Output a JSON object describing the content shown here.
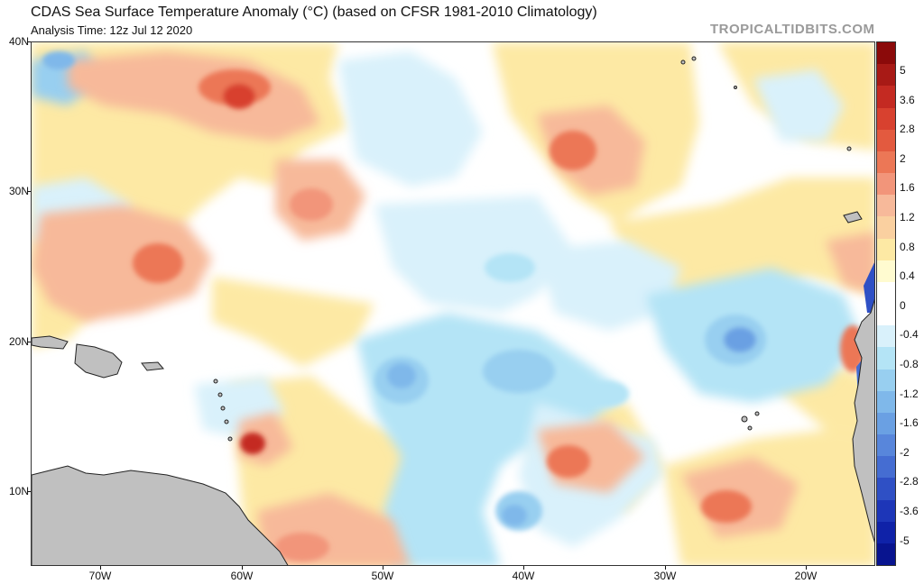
{
  "header": {
    "title": "CDAS Sea Surface Temperature Anomaly (°C) (based on CFSR 1981-2010 Climatology)",
    "subtitle": "Analysis Time: 12z Jul 12 2020",
    "watermark": "TROPICALTIDBITS.COM"
  },
  "map": {
    "lat_labels": [
      "40N",
      "30N",
      "20N",
      "10N"
    ],
    "lon_labels": [
      "70W",
      "60W",
      "50W",
      "40W",
      "30W",
      "20W"
    ],
    "land_color": "#c0c0c0",
    "coastline_color": "#222222"
  },
  "colorbar": {
    "labels": [
      "5",
      "3.6",
      "2.8",
      "2",
      "1.6",
      "1.2",
      "0.8",
      "0.4",
      "0",
      "-0.4",
      "-0.8",
      "-1.2",
      "-1.6",
      "-2",
      "-2.8",
      "-3.6",
      "-5"
    ],
    "colors": [
      "#8b0a0a",
      "#a81a16",
      "#c42a22",
      "#d8412f",
      "#e35a3f",
      "#ec7756",
      "#f2957a",
      "#f7b99a",
      "#fad0a0",
      "#fde9a4",
      "#fffbd0",
      "#ffffff",
      "#ffffff",
      "#d9f1fb",
      "#b4e4f6",
      "#98cff0",
      "#7fb8ea",
      "#6aa0e3",
      "#5886db",
      "#456dd2",
      "#2f50c5",
      "#1d36b8",
      "#0f22a8",
      "#08148f"
    ]
  }
}
